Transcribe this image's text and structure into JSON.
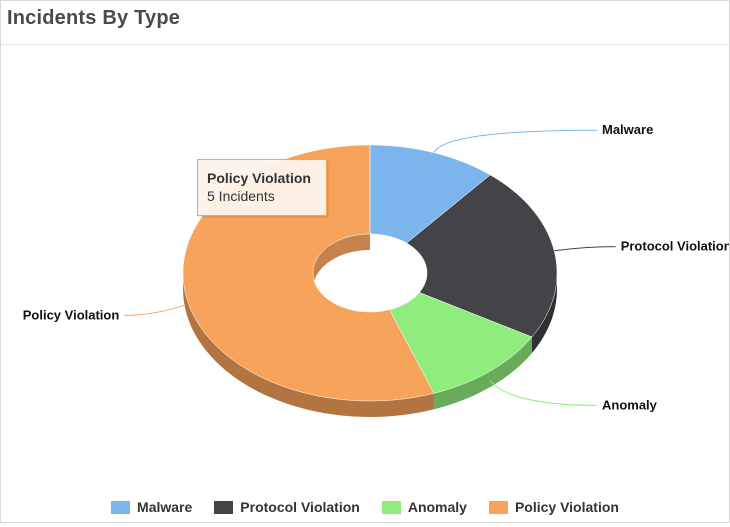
{
  "widget": {
    "title": "Incidents By Type"
  },
  "chart_data": {
    "type": "pie",
    "variant": "3d-donut",
    "title": "Incidents By Type",
    "categories": [
      "Malware",
      "Protocol Violation",
      "Anomaly",
      "Policy Violation"
    ],
    "values": [
      1,
      2,
      1,
      5
    ],
    "units": "Incidents",
    "colors": [
      "#7cb5ec",
      "#434348",
      "#90ed7d",
      "#f7a35c"
    ],
    "legend_position": "bottom-center",
    "tooltip": {
      "title": "Policy Violation",
      "value_text": "5 Incidents"
    }
  }
}
